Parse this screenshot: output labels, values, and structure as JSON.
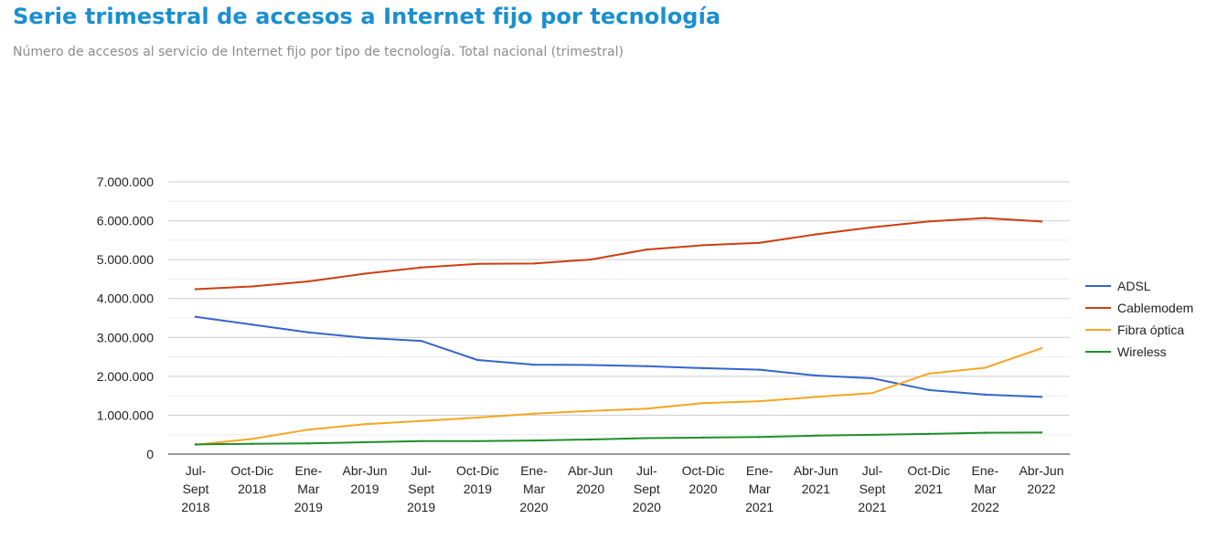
{
  "header": {
    "title": "Serie trimestral de accesos a Internet fijo por tecnología",
    "subtitle": "Número de accesos al servicio de Internet fijo por tipo de tecnología. Total nacional (trimestral)"
  },
  "chart_data": {
    "type": "line",
    "title": "",
    "xlabel": "",
    "ylabel": "",
    "ylim": [
      0,
      7000000
    ],
    "y_ticks": [
      "0",
      "1.000.000",
      "2.000.000",
      "3.000.000",
      "4.000.000",
      "5.000.000",
      "6.000.000",
      "7.000.000"
    ],
    "categories": [
      [
        "Jul-",
        "Sept",
        "2018"
      ],
      [
        "Oct-Dic",
        "2018"
      ],
      [
        "Ene-",
        "Mar",
        "2019"
      ],
      [
        "Abr-Jun",
        "2019"
      ],
      [
        "Jul-",
        "Sept",
        "2019"
      ],
      [
        "Oct-Dic",
        "2019"
      ],
      [
        "Ene-",
        "Mar",
        "2020"
      ],
      [
        "Abr-Jun",
        "2020"
      ],
      [
        "Jul-",
        "Sept",
        "2020"
      ],
      [
        "Oct-Dic",
        "2020"
      ],
      [
        "Ene-",
        "Mar",
        "2021"
      ],
      [
        "Abr-Jun",
        "2021"
      ],
      [
        "Jul-",
        "Sept",
        "2021"
      ],
      [
        "Oct-Dic",
        "2021"
      ],
      [
        "Ene-",
        "Mar",
        "2022"
      ],
      [
        "Abr-Jun",
        "2022"
      ]
    ],
    "grid": true,
    "legend_position": "right",
    "series": [
      {
        "name": "ADSL",
        "color": "#3366cc",
        "values": [
          3530000,
          3330000,
          3130000,
          2990000,
          2910000,
          2420000,
          2300000,
          2290000,
          2260000,
          2210000,
          2170000,
          2020000,
          1950000,
          1650000,
          1530000,
          1470000
        ]
      },
      {
        "name": "Cablemodem",
        "color": "#cc3f12",
        "values": [
          4240000,
          4310000,
          4440000,
          4640000,
          4800000,
          4890000,
          4900000,
          5000000,
          5260000,
          5370000,
          5430000,
          5650000,
          5830000,
          5980000,
          6070000,
          5980000
        ]
      },
      {
        "name": "Fibra óptica",
        "color": "#f5a623",
        "values": [
          240000,
          390000,
          630000,
          770000,
          850000,
          940000,
          1040000,
          1110000,
          1170000,
          1310000,
          1360000,
          1470000,
          1570000,
          2070000,
          2220000,
          2720000
        ]
      },
      {
        "name": "Wireless",
        "color": "#1f8f2a",
        "values": [
          250000,
          265000,
          275000,
          305000,
          335000,
          335000,
          350000,
          375000,
          410000,
          425000,
          440000,
          475000,
          495000,
          520000,
          550000,
          555000
        ]
      }
    ]
  }
}
